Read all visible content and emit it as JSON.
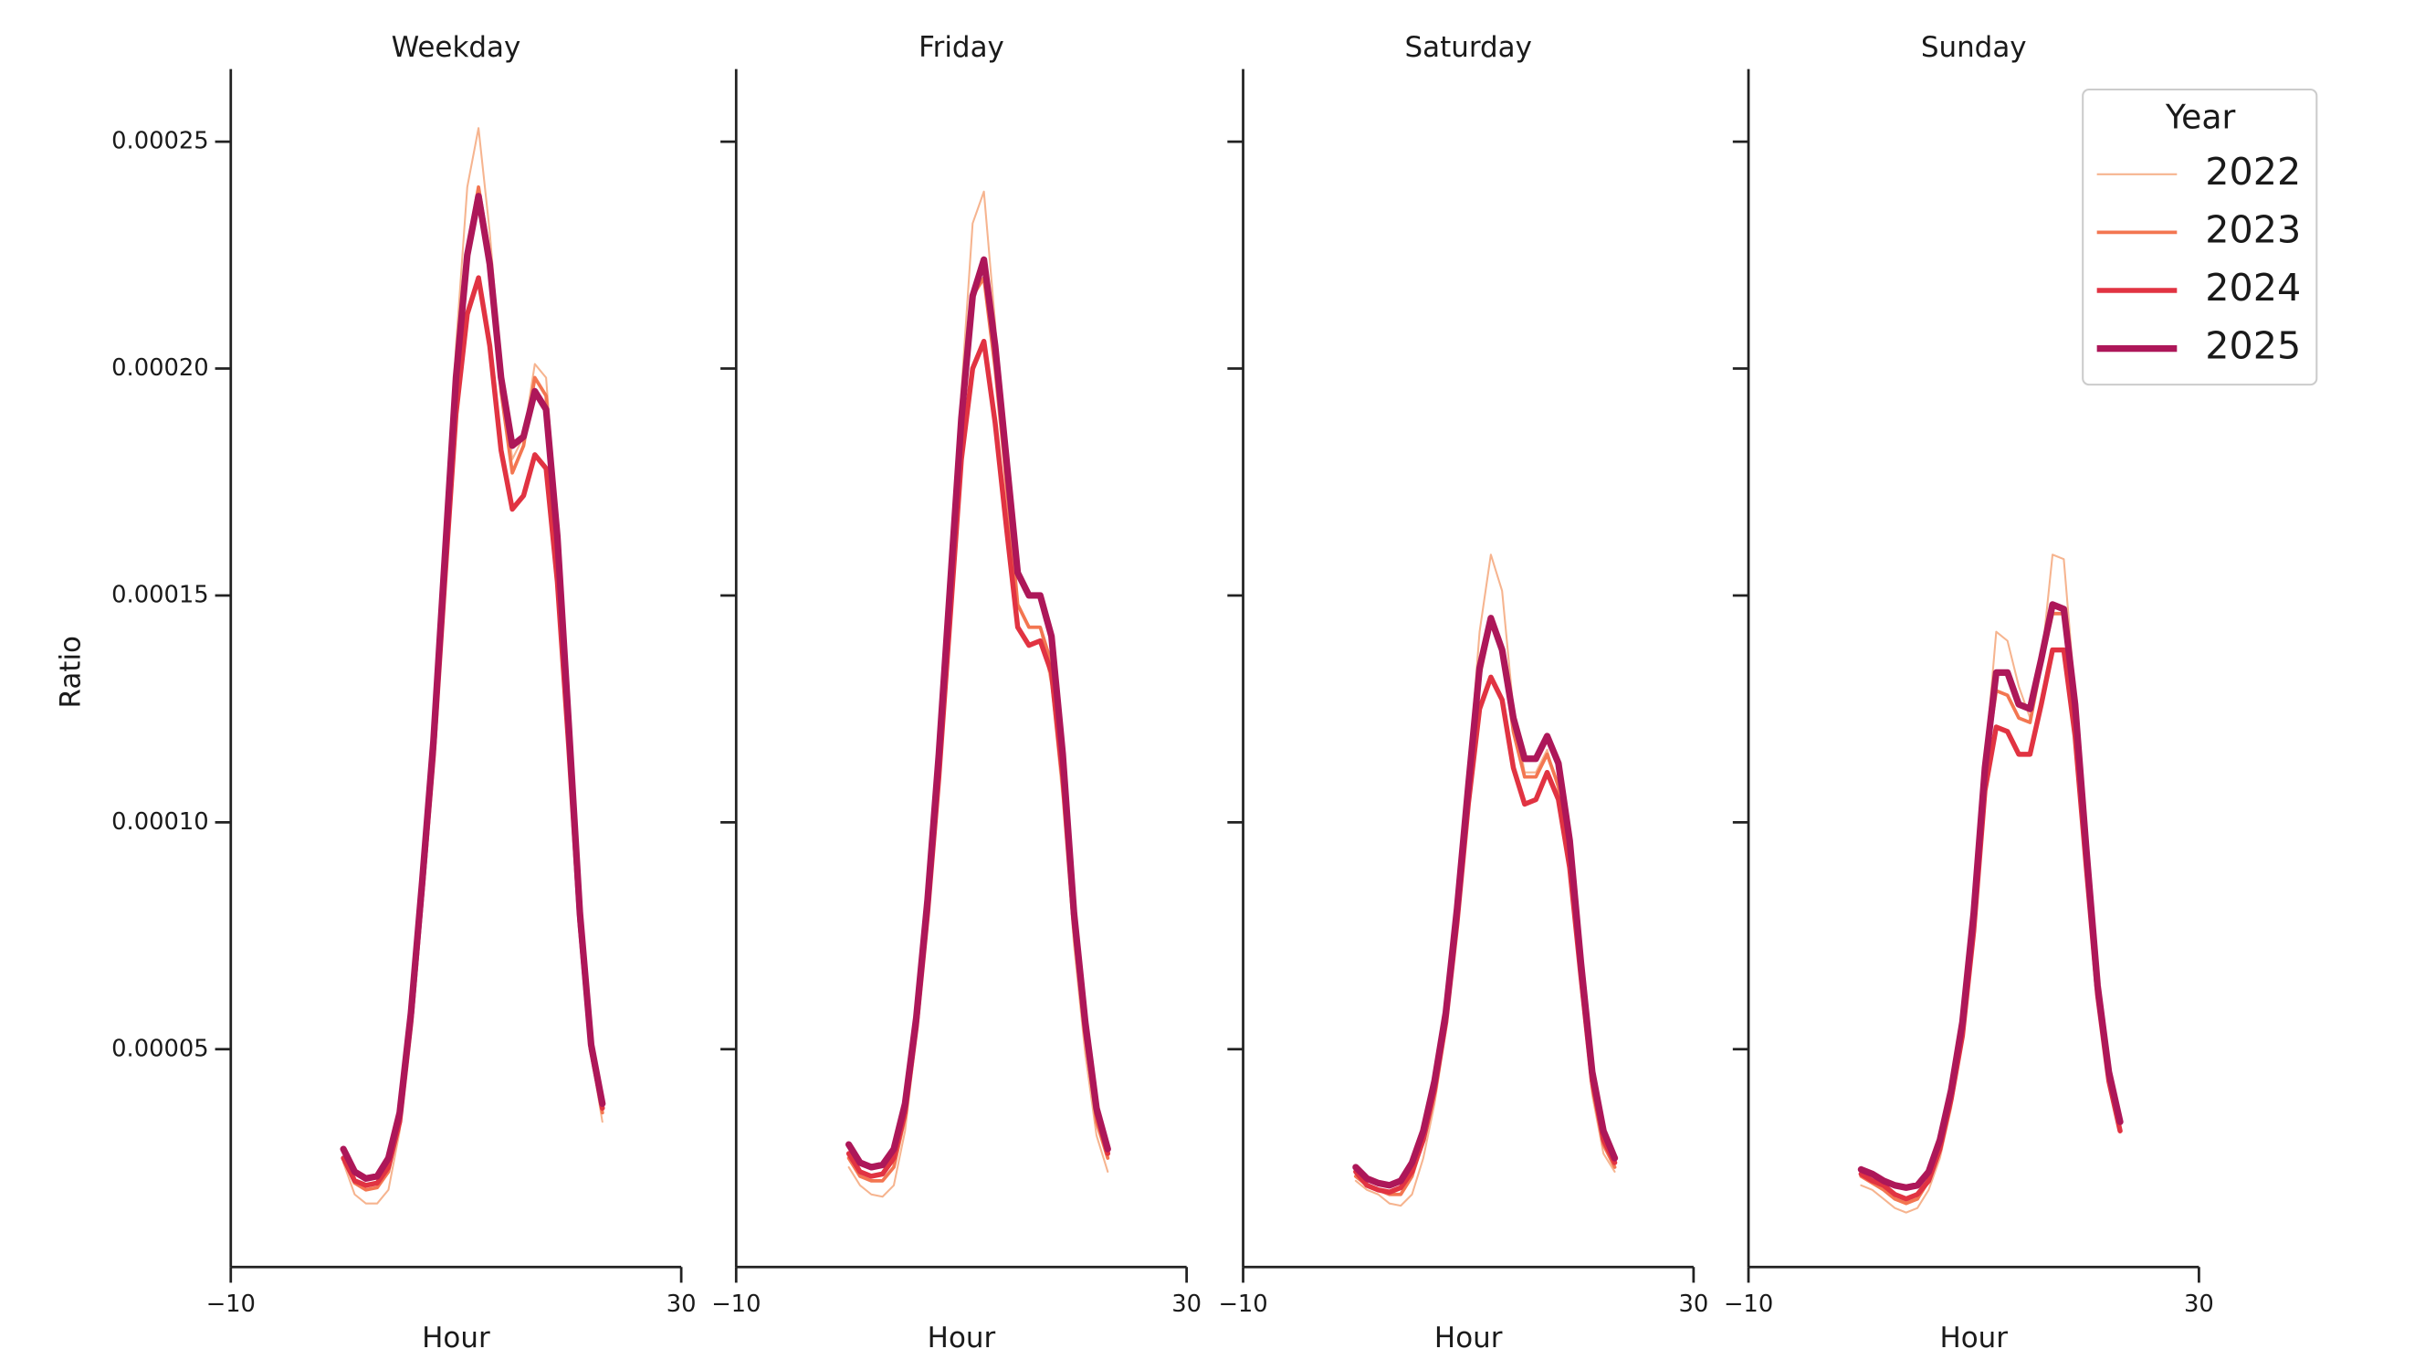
{
  "chart_data": [
    {
      "type": "line",
      "title": "Weekday",
      "xlabel": "Hour",
      "ylabel": "Ratio",
      "x": [
        0,
        1,
        2,
        3,
        4,
        5,
        6,
        7,
        8,
        9,
        10,
        11,
        12,
        13,
        14,
        15,
        16,
        17,
        18,
        19,
        20,
        21,
        22,
        23
      ],
      "xlim": [
        -10,
        30
      ],
      "xticks": [
        {
          "value": -10,
          "label": "−10"
        },
        30
      ],
      "ylim": [
        2e-06,
        0.000266
      ],
      "yticks": [
        5e-05,
        {
          "value": 0.0001,
          "label": "0.00010"
        },
        0.00015,
        {
          "value": 0.0002,
          "label": "0.00020"
        },
        0.00025
      ],
      "series": [
        {
          "name": "2022",
          "color": "#f6b48f",
          "values": [
            2.5e-05,
            1.8e-05,
            1.6e-05,
            1.6e-05,
            1.9e-05,
            3.2e-05,
            5.5e-05,
            8.5e-05,
            0.000118,
            0.00016,
            0.000205,
            0.00024,
            0.000253,
            0.00023,
            0.0002,
            0.00018,
            0.000185,
            0.000201,
            0.000198,
            0.000165,
            0.00012,
            7.8e-05,
            4.9e-05,
            3.4e-05
          ]
        },
        {
          "name": "2023",
          "color": "#f37651",
          "values": [
            2.6e-05,
            2.05e-05,
            1.9e-05,
            1.95e-05,
            2.3e-05,
            3.4e-05,
            5.6e-05,
            8.5e-05,
            0.000116,
            0.000155,
            0.000196,
            0.000226,
            0.00024,
            0.000225,
            0.000195,
            0.000177,
            0.000183,
            0.000198,
            0.000194,
            0.000162,
            0.00012,
            7.9e-05,
            5e-05,
            3.6e-05
          ]
        },
        {
          "name": "2024",
          "color": "#e13342",
          "values": [
            2.6e-05,
            2.1e-05,
            2e-05,
            2.05e-05,
            2.4e-05,
            3.4e-05,
            5.6e-05,
            8.5e-05,
            0.000115,
            0.000153,
            0.00019,
            0.000212,
            0.00022,
            0.000205,
            0.000182,
            0.000169,
            0.000172,
            0.000181,
            0.000178,
            0.000153,
            0.000117,
            7.8e-05,
            5e-05,
            3.7e-05
          ]
        },
        {
          "name": "2025",
          "color": "#ad1759",
          "values": [
            2.8e-05,
            2.3e-05,
            2.15e-05,
            2.2e-05,
            2.6e-05,
            3.6e-05,
            5.8e-05,
            8.7e-05,
            0.000118,
            0.000158,
            0.000198,
            0.000225,
            0.000238,
            0.000223,
            0.000198,
            0.000183,
            0.000185,
            0.000195,
            0.000191,
            0.000163,
            0.000122,
            8e-05,
            5.1e-05,
            3.8e-05
          ]
        }
      ]
    },
    {
      "type": "line",
      "title": "Friday",
      "xlabel": "Hour",
      "x": [
        0,
        1,
        2,
        3,
        4,
        5,
        6,
        7,
        8,
        9,
        10,
        11,
        12,
        13,
        14,
        15,
        16,
        17,
        18,
        19,
        20,
        21,
        22,
        23
      ],
      "xlim": [
        -10,
        30
      ],
      "xticks": [
        {
          "value": -10,
          "label": "−10"
        },
        30
      ],
      "ylim": [
        2e-06,
        0.000266
      ],
      "series": [
        {
          "name": "2022",
          "color": "#f6b48f",
          "values": [
            2.4e-05,
            2e-05,
            1.8e-05,
            1.75e-05,
            2e-05,
            3.2e-05,
            5.3e-05,
            8e-05,
            0.000114,
            0.000155,
            0.000195,
            0.000232,
            0.000239,
            0.00021,
            0.00017,
            0.000148,
            0.000143,
            0.000143,
            0.00013,
            0.000105,
            7.3e-05,
            4.9e-05,
            3.1e-05,
            2.3e-05
          ]
        },
        {
          "name": "2023",
          "color": "#f37651",
          "values": [
            2.6e-05,
            2.2e-05,
            2.1e-05,
            2.1e-05,
            2.4e-05,
            3.5e-05,
            5.5e-05,
            8.1e-05,
            0.000113,
            0.00015,
            0.000188,
            0.000216,
            0.00022,
            0.0002,
            0.000175,
            0.000148,
            0.000143,
            0.000143,
            0.000135,
            0.00011,
            7.7e-05,
            5.3e-05,
            3.4e-05,
            2.6e-05
          ]
        },
        {
          "name": "2024",
          "color": "#e13342",
          "values": [
            2.7e-05,
            2.3e-05,
            2.2e-05,
            2.25e-05,
            2.6e-05,
            3.6e-05,
            5.5e-05,
            8e-05,
            0.00011,
            0.000145,
            0.00018,
            0.0002,
            0.000206,
            0.000188,
            0.000165,
            0.000143,
            0.000139,
            0.00014,
            0.000133,
            0.00011,
            7.8e-05,
            5.4e-05,
            3.6e-05,
            2.7e-05
          ]
        },
        {
          "name": "2025",
          "color": "#ad1759",
          "values": [
            2.9e-05,
            2.5e-05,
            2.4e-05,
            2.45e-05,
            2.8e-05,
            3.8e-05,
            5.7e-05,
            8.3e-05,
            0.000115,
            0.000152,
            0.000189,
            0.000216,
            0.000224,
            0.000205,
            0.00018,
            0.000155,
            0.00015,
            0.00015,
            0.000141,
            0.000115,
            8e-05,
            5.6e-05,
            3.7e-05,
            2.8e-05
          ]
        }
      ]
    },
    {
      "type": "line",
      "title": "Saturday",
      "xlabel": "Hour",
      "x": [
        0,
        1,
        2,
        3,
        4,
        5,
        6,
        7,
        8,
        9,
        10,
        11,
        12,
        13,
        14,
        15,
        16,
        17,
        18,
        19,
        20,
        21,
        22,
        23
      ],
      "xlim": [
        -10,
        30
      ],
      "xticks": [
        {
          "value": -10,
          "label": "−10"
        },
        30
      ],
      "ylim": [
        2e-06,
        0.000266
      ],
      "series": [
        {
          "name": "2022",
          "color": "#f6b48f",
          "values": [
            2.1e-05,
            1.9e-05,
            1.8e-05,
            1.6e-05,
            1.55e-05,
            1.8e-05,
            2.6e-05,
            3.8e-05,
            5.4e-05,
            7.9e-05,
            0.00011,
            0.000142,
            0.000159,
            0.000151,
            0.000125,
            0.000111,
            0.000111,
            0.000116,
            0.000107,
            8.9e-05,
            6.3e-05,
            4e-05,
            2.7e-05,
            2.3e-05
          ]
        },
        {
          "name": "2023",
          "color": "#f37651",
          "values": [
            2.2e-05,
            2e-05,
            1.9e-05,
            1.8e-05,
            1.8e-05,
            2.2e-05,
            3e-05,
            4.1e-05,
            5.6e-05,
            8e-05,
            0.000107,
            0.000132,
            0.000144,
            0.000138,
            0.00012,
            0.00011,
            0.00011,
            0.000115,
            0.000108,
            9.1e-05,
            6.5e-05,
            4.2e-05,
            2.9e-05,
            2.4e-05
          ]
        },
        {
          "name": "2024",
          "color": "#e13342",
          "values": [
            2.3e-05,
            2e-05,
            1.9e-05,
            1.85e-05,
            1.95e-05,
            2.3e-05,
            3e-05,
            4.1e-05,
            5.6e-05,
            7.8e-05,
            0.000104,
            0.000125,
            0.000132,
            0.000127,
            0.000112,
            0.000104,
            0.000105,
            0.000111,
            0.000105,
            9e-05,
            6.6e-05,
            4.3e-05,
            3e-05,
            2.5e-05
          ]
        },
        {
          "name": "2025",
          "color": "#ad1759",
          "values": [
            2.4e-05,
            2.15e-05,
            2.05e-05,
            2e-05,
            2.1e-05,
            2.5e-05,
            3.2e-05,
            4.3e-05,
            5.8e-05,
            8.1e-05,
            0.000108,
            0.000134,
            0.000145,
            0.000138,
            0.000123,
            0.000114,
            0.000114,
            0.000119,
            0.000113,
            9.6e-05,
            6.9e-05,
            4.5e-05,
            3.2e-05,
            2.6e-05
          ]
        }
      ]
    },
    {
      "type": "line",
      "title": "Sunday",
      "xlabel": "Hour",
      "legend_title": "Year",
      "x": [
        0,
        1,
        2,
        3,
        4,
        5,
        6,
        7,
        8,
        9,
        10,
        11,
        12,
        13,
        14,
        15,
        16,
        17,
        18,
        19,
        20,
        21,
        22,
        23
      ],
      "xlim": [
        -10,
        30
      ],
      "xticks": [
        {
          "value": -10,
          "label": "−10"
        },
        30
      ],
      "ylim": [
        2e-06,
        0.000266
      ],
      "series": [
        {
          "name": "2022",
          "color": "#f6b48f",
          "values": [
            2e-05,
            1.9e-05,
            1.7e-05,
            1.5e-05,
            1.4e-05,
            1.5e-05,
            1.9e-05,
            2.6e-05,
            3.7e-05,
            5.2e-05,
            7.7e-05,
            0.000113,
            0.000142,
            0.00014,
            0.00013,
            0.000123,
            0.000135,
            0.000159,
            0.000158,
            0.000128,
            9.2e-05,
            6.2e-05,
            4.2e-05,
            3.2e-05
          ]
        },
        {
          "name": "2023",
          "color": "#f37651",
          "values": [
            2.2e-05,
            2.05e-05,
            1.9e-05,
            1.7e-05,
            1.6e-05,
            1.7e-05,
            2.1e-05,
            2.8e-05,
            3.9e-05,
            5.4e-05,
            7.8e-05,
            0.000112,
            0.000129,
            0.000128,
            0.000123,
            0.000122,
            0.000135,
            0.000146,
            0.000146,
            0.000123,
            9e-05,
            6.1e-05,
            4.3e-05,
            3.2e-05
          ]
        },
        {
          "name": "2024",
          "color": "#e13342",
          "values": [
            2.25e-05,
            2.1e-05,
            2e-05,
            1.8e-05,
            1.7e-05,
            1.8e-05,
            2.1e-05,
            2.8e-05,
            3.9e-05,
            5.3e-05,
            7.6e-05,
            0.000107,
            0.000121,
            0.00012,
            0.000115,
            0.000115,
            0.000126,
            0.000138,
            0.000138,
            0.000119,
            9e-05,
            6.2e-05,
            4.3e-05,
            3.2e-05
          ]
        },
        {
          "name": "2025",
          "color": "#ad1759",
          "values": [
            2.35e-05,
            2.25e-05,
            2.1e-05,
            2e-05,
            1.95e-05,
            2e-05,
            2.3e-05,
            3e-05,
            4.1e-05,
            5.6e-05,
            8e-05,
            0.000112,
            0.000133,
            0.000133,
            0.000126,
            0.000125,
            0.000136,
            0.000148,
            0.000147,
            0.000126,
            9.4e-05,
            6.4e-05,
            4.5e-05,
            3.4e-05
          ]
        }
      ]
    }
  ]
}
